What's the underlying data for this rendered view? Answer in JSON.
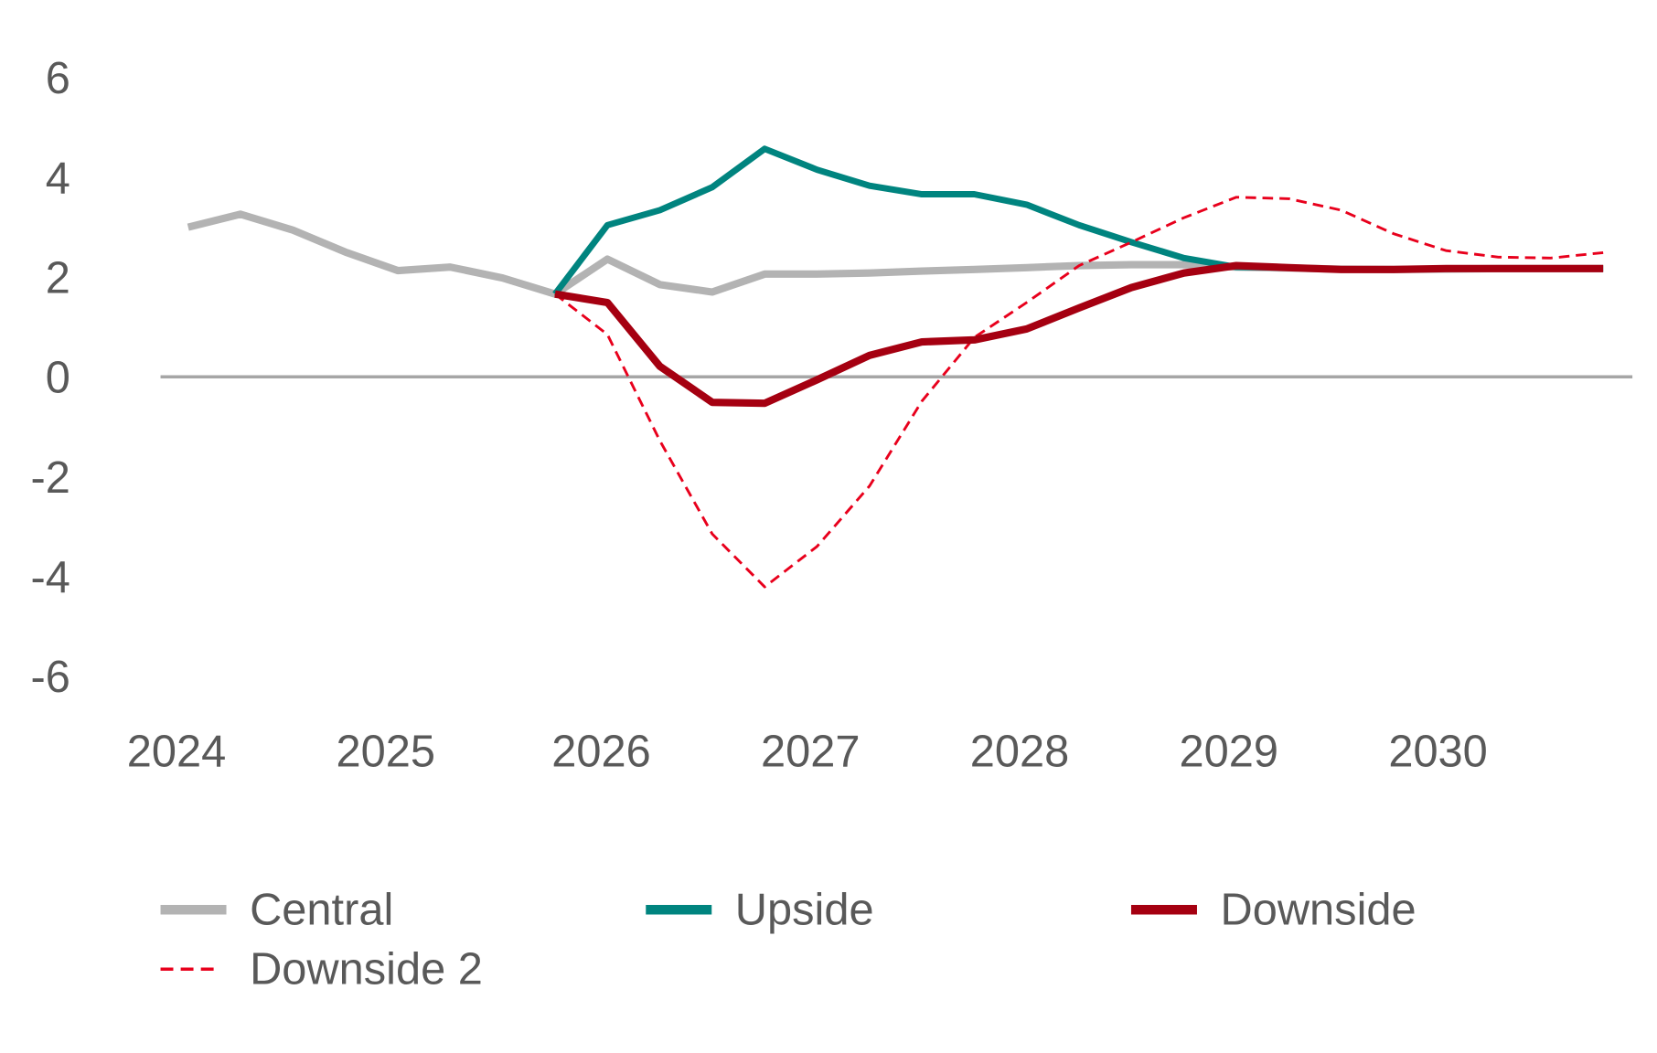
{
  "chart_data": {
    "type": "line",
    "title": "",
    "xlabel": "",
    "ylabel": "",
    "x": [
      "2024Q1",
      "2024Q2",
      "2024Q3",
      "2024Q4",
      "2025Q1",
      "2025Q2",
      "2025Q3",
      "2025Q4",
      "2026Q1",
      "2026Q2",
      "2026Q3",
      "2026Q4",
      "2027Q1",
      "2027Q2",
      "2027Q3",
      "2027Q4",
      "2028Q1",
      "2028Q2",
      "2028Q3",
      "2028Q4",
      "2029Q1",
      "2029Q2",
      "2029Q3",
      "2029Q4",
      "2030Q1",
      "2030Q2",
      "2030Q3",
      "2030Q4"
    ],
    "x_tick_labels": [
      "2024",
      "2025",
      "2026",
      "2027",
      "2028",
      "2029",
      "2030"
    ],
    "y_tick_labels": [
      "6",
      "4",
      "2",
      "0",
      "-2",
      "-4",
      "-6"
    ],
    "ylim": [
      -6,
      6
    ],
    "grid": false,
    "legend_position": "bottom",
    "series": [
      {
        "name": "Central",
        "color": "#b3b3b3",
        "style": "solid",
        "values": [
          3.0,
          3.26,
          2.94,
          2.5,
          2.13,
          2.2,
          1.98,
          1.66,
          2.36,
          1.85,
          1.7,
          2.06,
          2.06,
          2.08,
          2.12,
          2.15,
          2.19,
          2.23,
          2.25,
          2.25,
          2.2,
          2.18,
          2.16,
          2.15,
          2.16,
          2.17,
          2.17,
          2.17
        ]
      },
      {
        "name": "Upside",
        "color": "#00847f",
        "style": "solid",
        "values": [
          null,
          null,
          null,
          null,
          null,
          null,
          null,
          1.66,
          3.04,
          3.34,
          3.8,
          4.57,
          4.15,
          3.83,
          3.66,
          3.66,
          3.45,
          3.04,
          2.7,
          2.38,
          2.2,
          2.19,
          2.15,
          2.15,
          2.17,
          2.17,
          2.17,
          2.17
        ]
      },
      {
        "name": "Downside",
        "color": "#a50011",
        "style": "solid",
        "values": [
          null,
          null,
          null,
          null,
          null,
          null,
          null,
          1.66,
          1.49,
          0.21,
          -0.51,
          -0.53,
          -0.06,
          0.43,
          0.7,
          0.74,
          0.96,
          1.38,
          1.79,
          2.08,
          2.23,
          2.19,
          2.15,
          2.15,
          2.17,
          2.17,
          2.17,
          2.17
        ]
      },
      {
        "name": "Downside 2",
        "color": "#e8001c",
        "style": "dashed",
        "values": [
          null,
          null,
          null,
          null,
          null,
          null,
          null,
          1.66,
          0.85,
          -1.28,
          -3.15,
          -4.21,
          -3.4,
          -2.19,
          -0.49,
          0.79,
          1.49,
          2.23,
          2.7,
          3.19,
          3.6,
          3.57,
          3.34,
          2.87,
          2.53,
          2.4,
          2.38,
          2.49
        ]
      }
    ]
  }
}
